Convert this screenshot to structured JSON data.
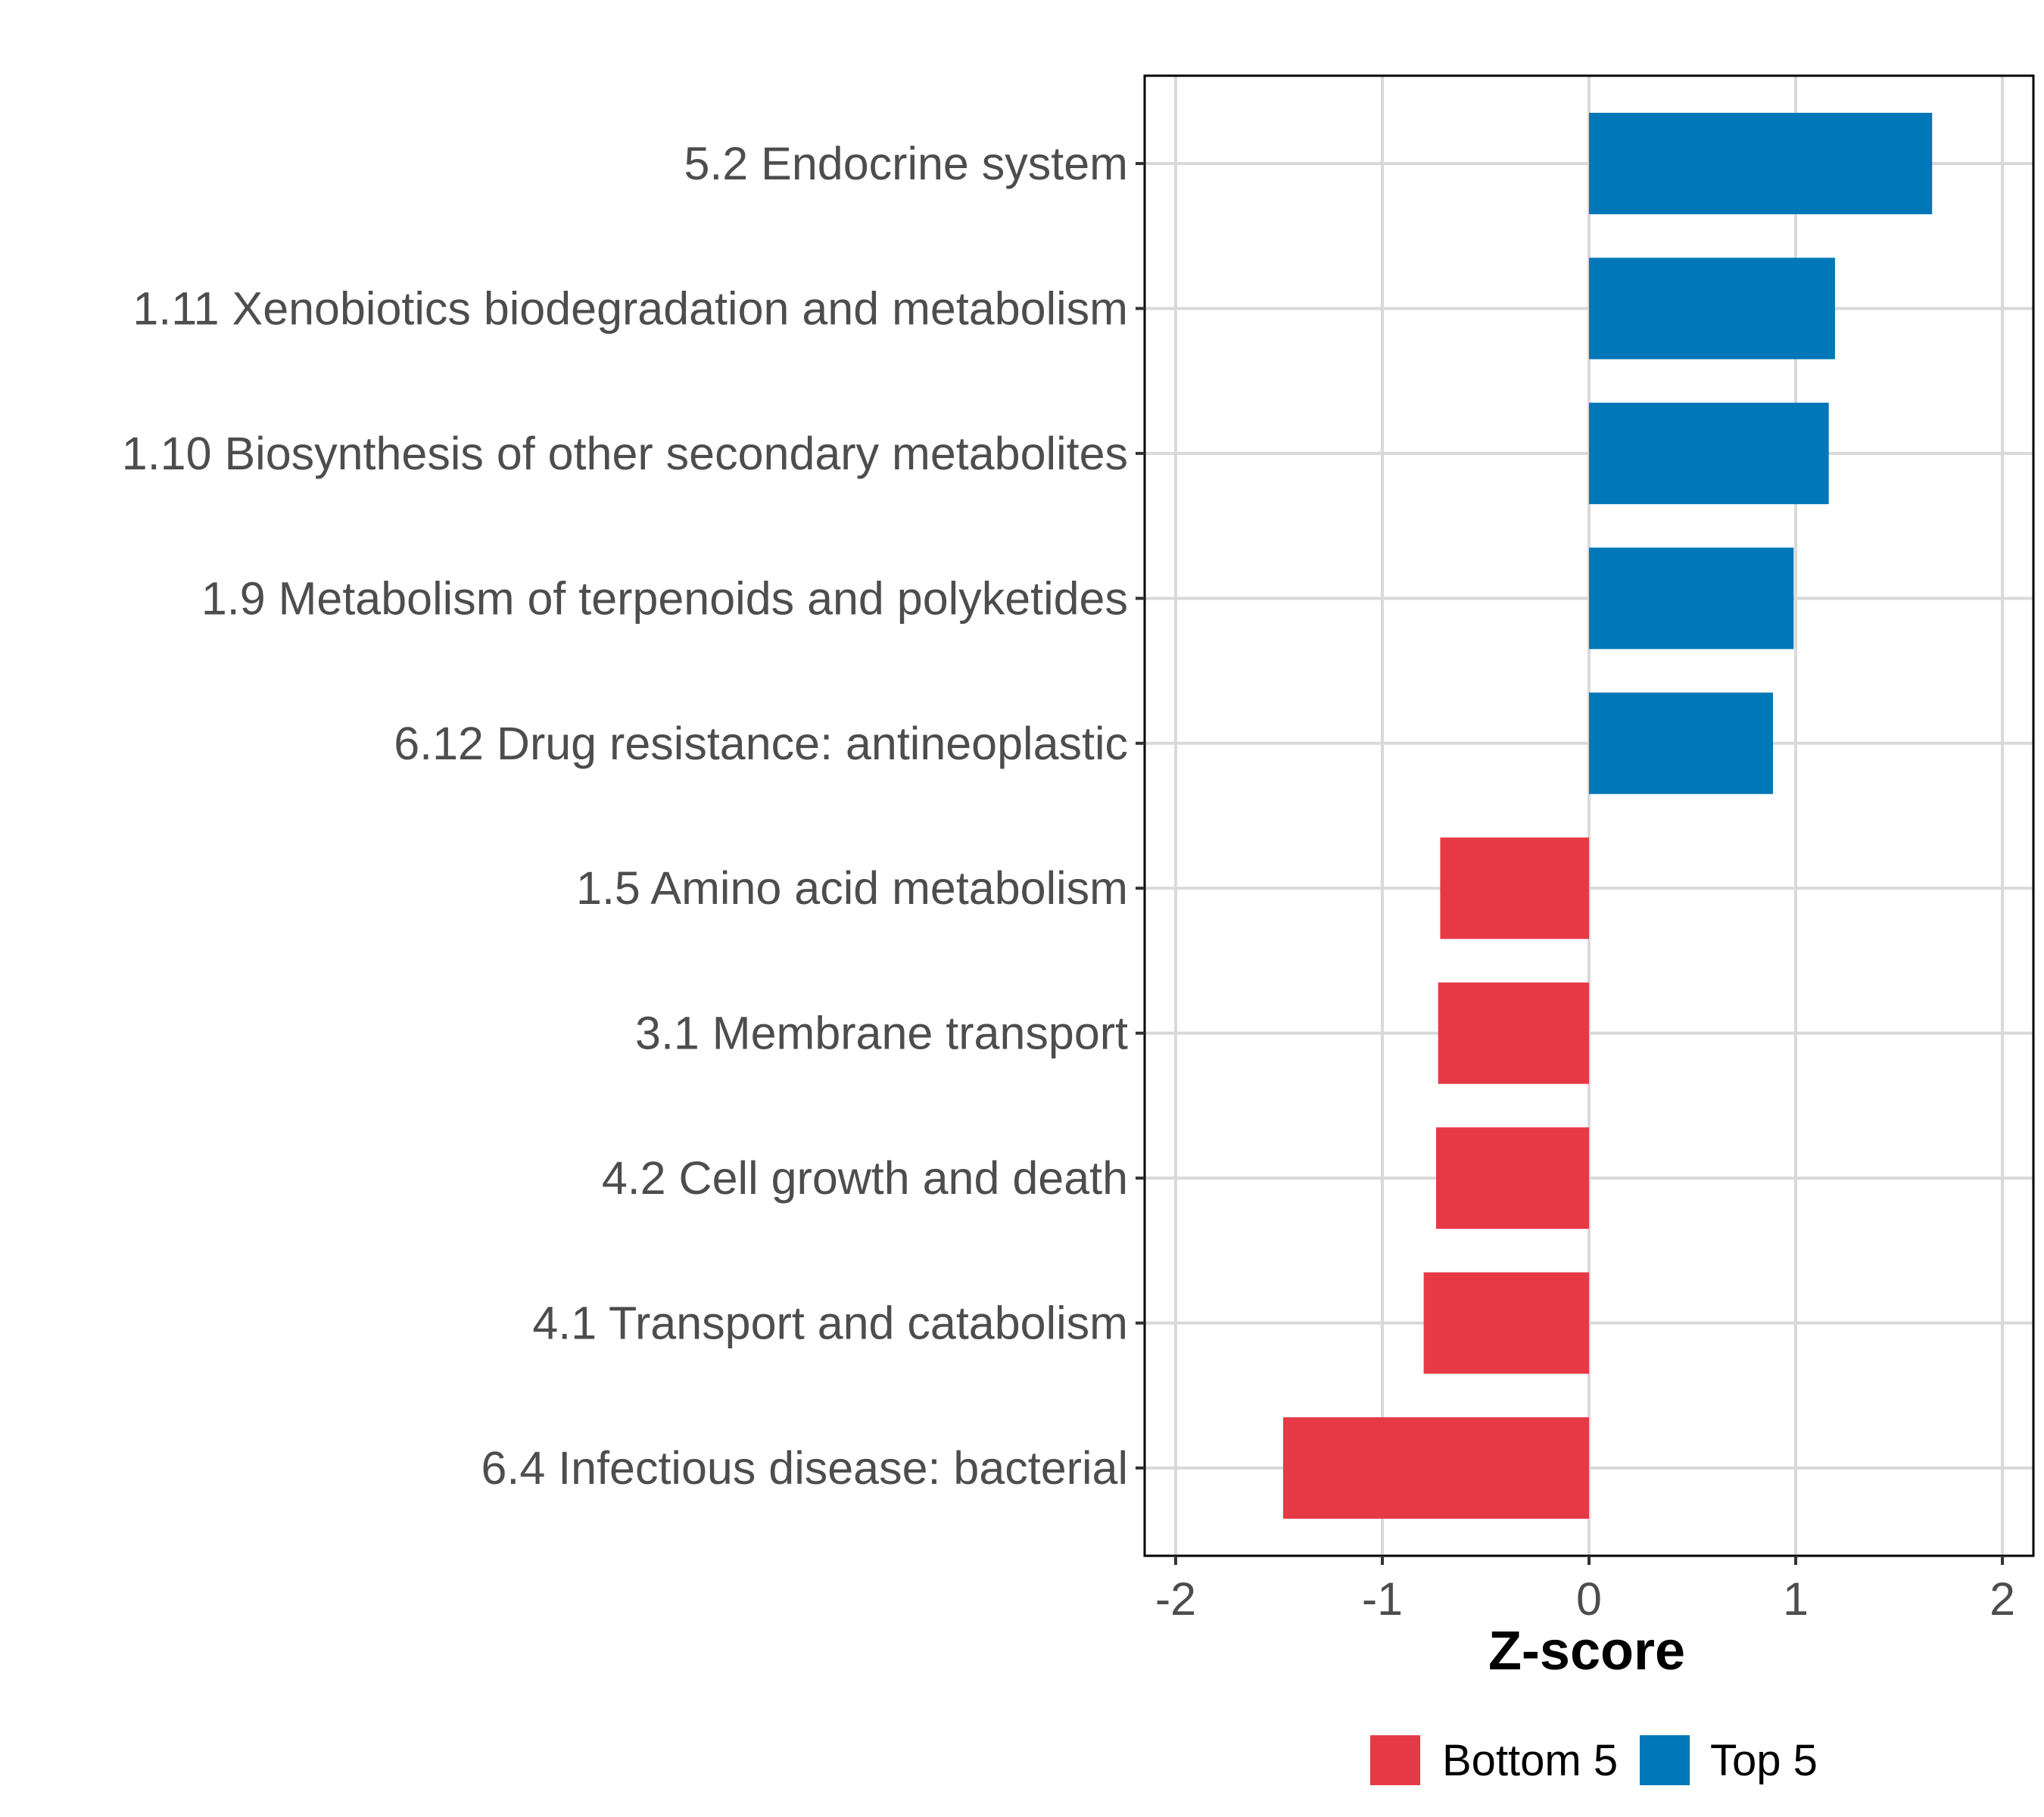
{
  "chart_data": {
    "type": "bar",
    "orientation": "horizontal",
    "title": "",
    "xlabel": "Z-score",
    "ylabel": "",
    "xlim": [
      -2.15,
      2.15
    ],
    "xticks": [
      -2,
      -1,
      0,
      1,
      2
    ],
    "xtick_labels": [
      "-2",
      "-1",
      "0",
      "1",
      "2"
    ],
    "grid": true,
    "legend_position": "bottom",
    "categories": [
      "5.2 Endocrine system",
      "1.11 Xenobiotics biodegradation and metabolism",
      "1.10 Biosynthesis of other secondary metabolites",
      "1.9 Metabolism of terpenoids and polyketides",
      "6.12 Drug resistance: antineoplastic",
      "1.5 Amino acid metabolism",
      "3.1 Membrane transport",
      "4.2 Cell growth and death",
      "4.1 Transport and catabolism",
      "6.4 Infectious disease: bacterial"
    ],
    "values": [
      1.66,
      1.19,
      1.16,
      0.99,
      0.89,
      -0.72,
      -0.73,
      -0.74,
      -0.8,
      -1.48
    ],
    "groups": [
      "Top 5",
      "Top 5",
      "Top 5",
      "Top 5",
      "Top 5",
      "Bottom 5",
      "Bottom 5",
      "Bottom 5",
      "Bottom 5",
      "Bottom 5"
    ],
    "legend": [
      {
        "name": "Bottom 5",
        "color": "#e63946"
      },
      {
        "name": "Top 5",
        "color": "#0077b6"
      }
    ]
  }
}
